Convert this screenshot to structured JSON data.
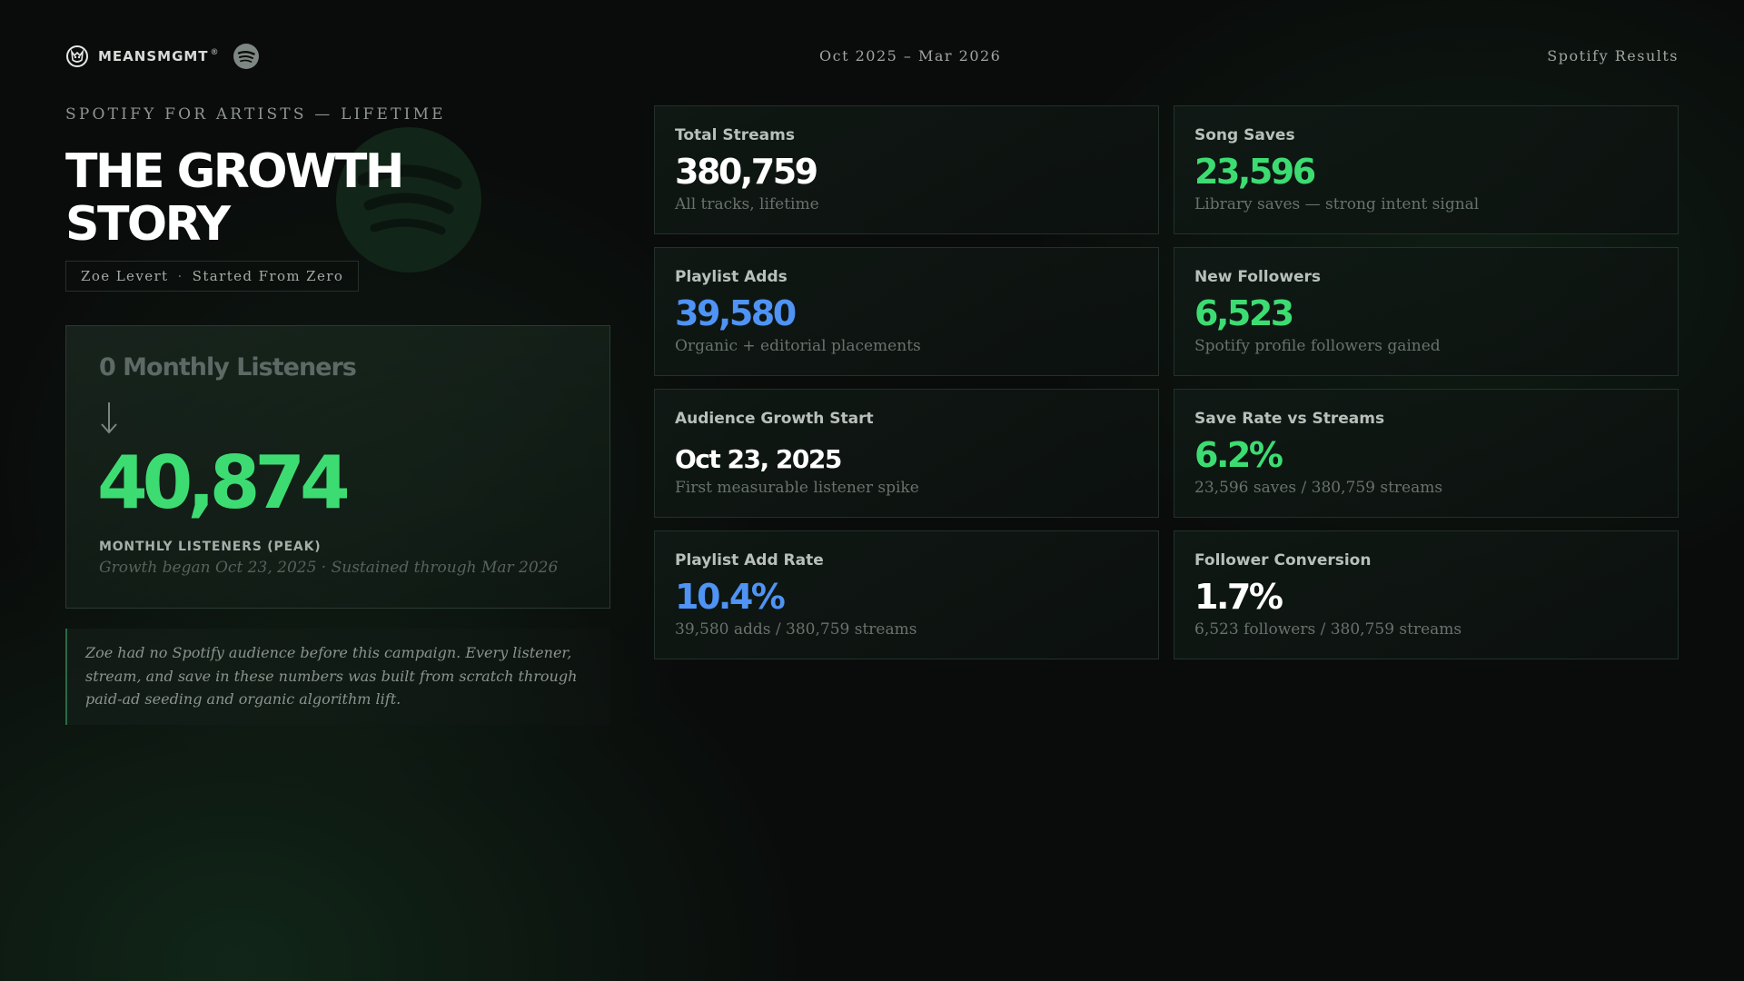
{
  "header": {
    "brand": "MEANSMGMT",
    "brand_reg": "®",
    "period": "Oct 2025 – Mar 2026",
    "report": "Spotify Results"
  },
  "hero": {
    "eyebrow": "SPOTIFY FOR ARTISTS — LIFETIME",
    "title_line1": "THE GROWTH",
    "title_line2": "STORY",
    "artist": "Zoe Levert",
    "separator": "·",
    "campaign": "Started From Zero"
  },
  "listeners": {
    "before": "0 Monthly Listeners",
    "value": "40,874",
    "label": "MONTHLY LISTENERS (PEAK)",
    "note": "Growth began Oct 23, 2025 · Sustained through Mar 2026"
  },
  "quote": "Zoe had no Spotify audience before this campaign. Every listener, stream, and save in these numbers was built from scratch through paid-ad seeding and organic algorithm lift.",
  "stats": [
    {
      "label": "Total Streams",
      "value": "380,759",
      "sub": "All tracks, lifetime"
    },
    {
      "label": "Song Saves",
      "value": "23,596",
      "sub": "Library saves — strong intent signal"
    },
    {
      "label": "Playlist Adds",
      "value": "39,580",
      "sub": "Organic + editorial placements"
    },
    {
      "label": "New Followers",
      "value": "6,523",
      "sub": "Spotify profile followers gained"
    },
    {
      "label": "Audience Growth Start",
      "value": "Oct 23, 2025",
      "sub": "First measurable listener spike"
    },
    {
      "label": "Save Rate vs Streams",
      "value": "6.2%",
      "sub": "23,596 saves / 380,759 streams"
    },
    {
      "label": "Playlist Add Rate",
      "value": "10.4%",
      "sub": "39,580 adds / 380,759 streams"
    },
    {
      "label": "Follower Conversion",
      "value": "1.7%",
      "sub": "6,523 followers / 380,759 streams"
    }
  ],
  "colors": {
    "accent_green": "#3ddc72",
    "accent_blue": "#4f93f4",
    "background": "#0a0c0b"
  },
  "icons": {
    "brand": "brand-logo-icon",
    "spotify": "spotify-icon",
    "arrow": "arrow-down-icon"
  }
}
